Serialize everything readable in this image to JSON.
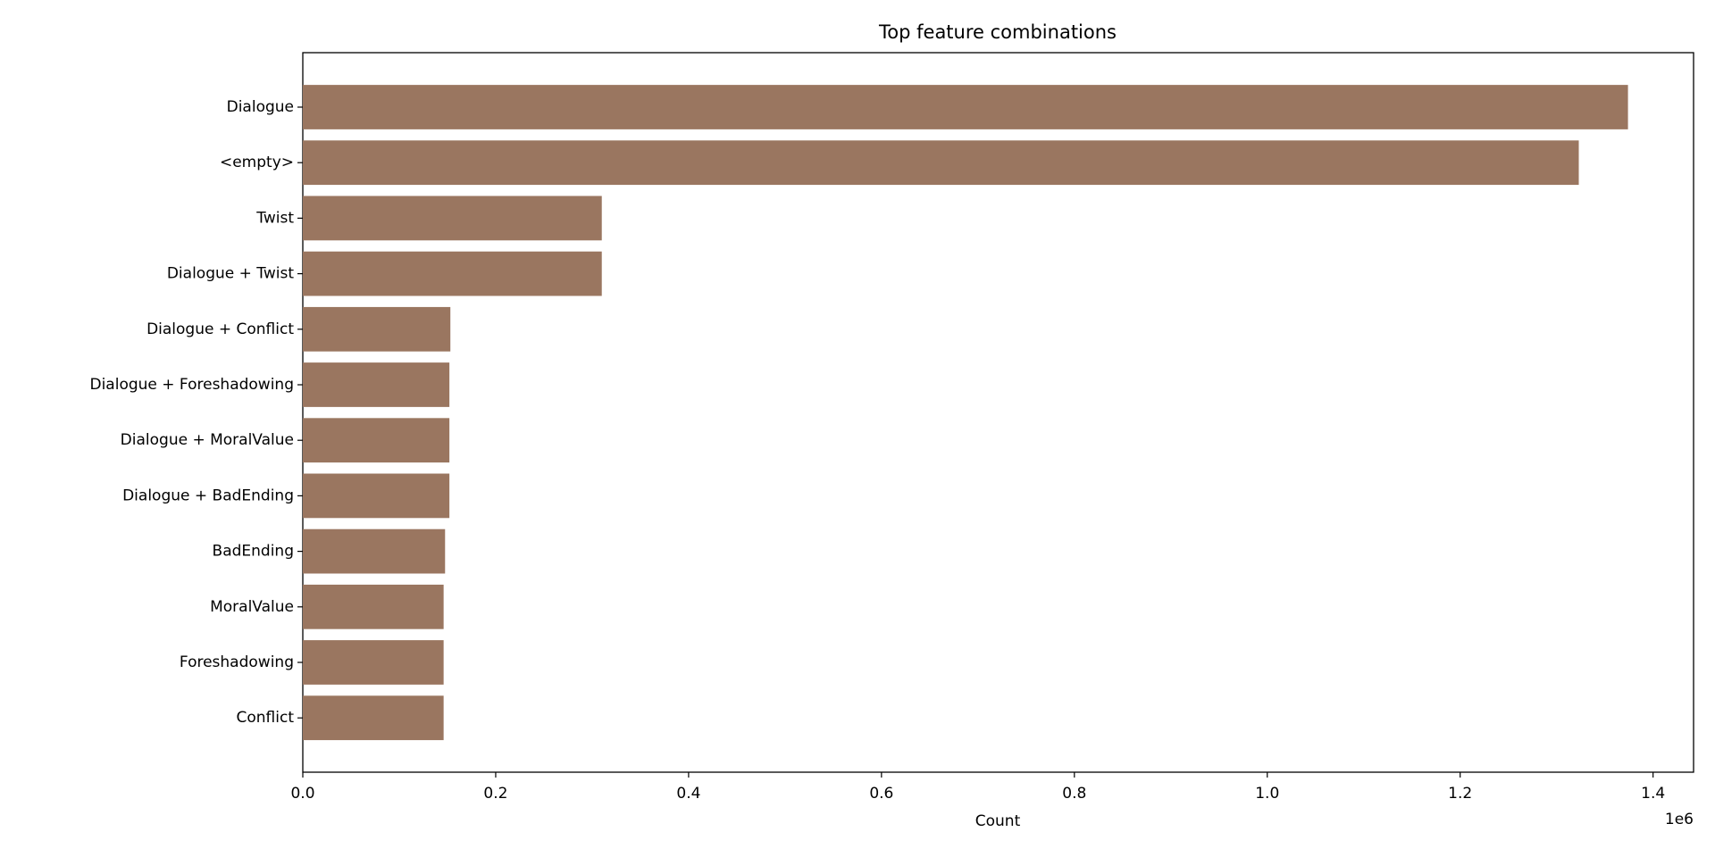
{
  "chart_data": {
    "type": "barh",
    "title": "Top feature combinations",
    "x_label": "Count",
    "x_offset_label": "1e6",
    "categories": [
      "Dialogue",
      "<empty>",
      "Twist",
      "Dialogue + Twist",
      "Dialogue + Conflict",
      "Dialogue + Foreshadowing",
      "Dialogue + MoralValue",
      "Dialogue + BadEnding",
      "BadEnding",
      "MoralValue",
      "Foreshadowing",
      "Conflict"
    ],
    "values": [
      1374000,
      1323000,
      310000,
      310000,
      153000,
      152000,
      152000,
      152000,
      147500,
      146000,
      146000,
      146000
    ],
    "color": "#9a7660",
    "xlim": [
      0,
      1442000
    ],
    "xticks": [
      {
        "value": 0,
        "label": "0.0"
      },
      {
        "value": 200000,
        "label": "0.2"
      },
      {
        "value": 400000,
        "label": "0.4"
      },
      {
        "value": 600000,
        "label": "0.6"
      },
      {
        "value": 800000,
        "label": "0.8"
      },
      {
        "value": 1000000,
        "label": "1.0"
      },
      {
        "value": 1200000,
        "label": "1.2"
      },
      {
        "value": 1400000,
        "label": "1.4"
      }
    ]
  }
}
